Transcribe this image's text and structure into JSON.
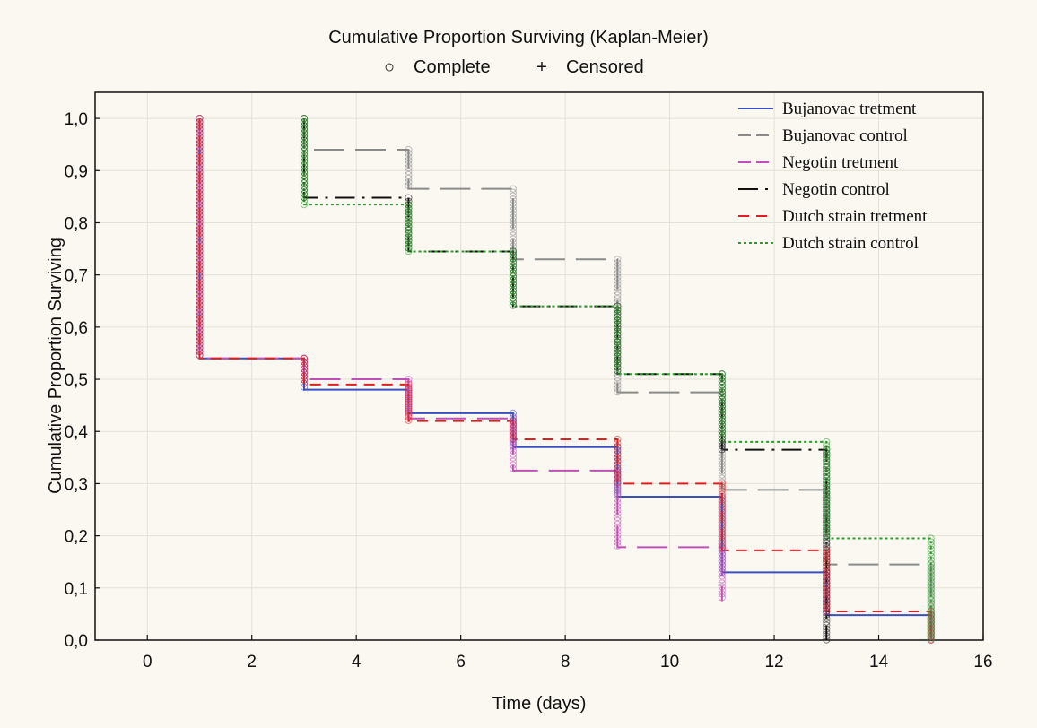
{
  "chart_data": {
    "type": "line",
    "title": "Cumulative Proportion Surviving (Kaplan-Meier)",
    "marker_legend": {
      "complete_symbol": "○",
      "complete_label": "Complete",
      "censored_symbol": "+",
      "censored_label": "Censored"
    },
    "xlabel": "Time (days)",
    "ylabel": "Cumulative Proportion Surviving",
    "xlim": [
      -1,
      16
    ],
    "ylim": [
      0,
      1.05
    ],
    "x_ticks": [
      "0",
      "2",
      "4",
      "6",
      "8",
      "10",
      "12",
      "14",
      "16"
    ],
    "y_ticks": [
      "0,0",
      "0,1",
      "0,2",
      "0,3",
      "0,4",
      "0,5",
      "0,6",
      "0,7",
      "0,8",
      "0,9",
      "1,0"
    ],
    "grid": true,
    "legend_position": "top-right",
    "series": [
      {
        "name": "Bujanovac tretment",
        "color": "#3a4fc0",
        "dash": "solid",
        "x": [
          1,
          3,
          5,
          7,
          9,
          11,
          13,
          15
        ],
        "y": [
          0.54,
          0.48,
          0.435,
          0.37,
          0.275,
          0.13,
          0.048,
          0.0
        ]
      },
      {
        "name": "Bujanovac control",
        "color": "#8a8a8a",
        "dash": "longdash",
        "x": [
          3,
          5,
          7,
          9,
          11,
          13,
          15
        ],
        "y": [
          0.94,
          0.865,
          0.73,
          0.475,
          0.288,
          0.145,
          0.0
        ]
      },
      {
        "name": "Negotin tretment",
        "color": "#c050b8",
        "dash": "longdash",
        "x": [
          1,
          3,
          5,
          7,
          9,
          11
        ],
        "y": [
          0.54,
          0.5,
          0.425,
          0.325,
          0.178,
          0.075
        ]
      },
      {
        "name": "Negotin control",
        "color": "#111111",
        "dash": "dashdot",
        "x": [
          3,
          5,
          7,
          9,
          11,
          13
        ],
        "y": [
          0.848,
          0.745,
          0.64,
          0.51,
          0.365,
          0.0
        ]
      },
      {
        "name": "Dutch strain tretment",
        "color": "#e02020",
        "dash": "dash",
        "x": [
          1,
          3,
          5,
          7,
          9,
          11,
          13,
          15
        ],
        "y": [
          0.54,
          0.49,
          0.42,
          0.385,
          0.3,
          0.172,
          0.055,
          0.0
        ]
      },
      {
        "name": "Dutch strain control",
        "color": "#2a9a2a",
        "dash": "dot",
        "x": [
          3,
          5,
          7,
          9,
          11,
          13,
          15
        ],
        "y": [
          0.835,
          0.745,
          0.64,
          0.51,
          0.38,
          0.195,
          0.0
        ]
      }
    ]
  }
}
